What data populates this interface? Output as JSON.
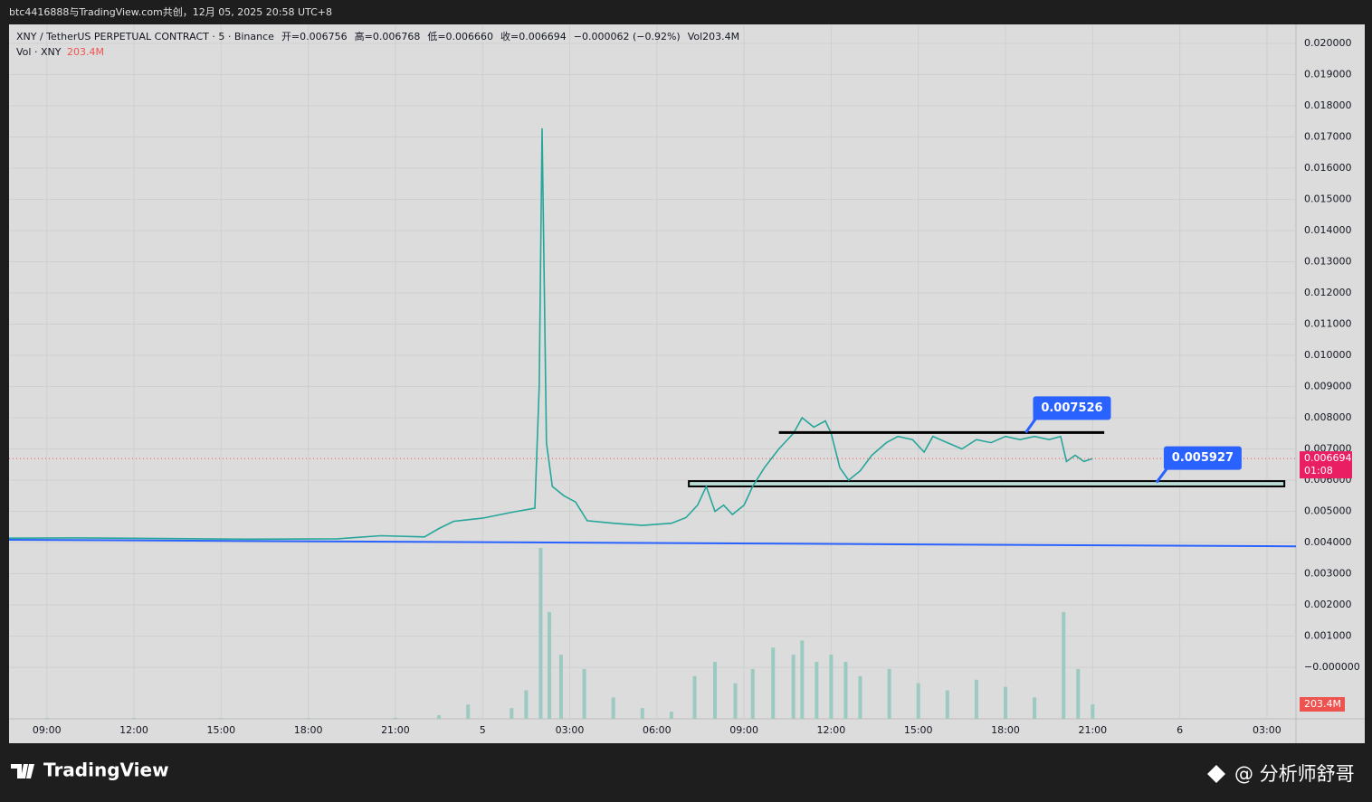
{
  "chart_data": {
    "type": "line",
    "title": "btc4416888与TradingView.com共创，12月 05, 2025 20:58 UTC+8",
    "legend": {
      "symbol": "XNY / TetherUS PERPETUAL CONTRACT · 5 · Binance",
      "open": "开=0.006756",
      "high": "高=0.006768",
      "low": "低=0.006660",
      "close": "收=0.006694",
      "change": "−0.000062 (−0.92%)",
      "vol_label": "Vol",
      "vol_value": "203.4M"
    },
    "x": [
      -1.3,
      1,
      4,
      7,
      10,
      11.5,
      13,
      13.5,
      14,
      15,
      16,
      16.8,
      16.95,
      17.05,
      17.2,
      17.4,
      17.8,
      18.2,
      18.6,
      19.5,
      20.5,
      21.5,
      22.0,
      22.4,
      22.7,
      23.0,
      23.3,
      23.6,
      24.0,
      24.3,
      24.7,
      25.2,
      25.7,
      26.0,
      26.4,
      26.8,
      27.0,
      27.3,
      27.6,
      28.0,
      28.4,
      28.9,
      29.3,
      29.8,
      30.2,
      30.5,
      31.0,
      31.5,
      32.0,
      32.5,
      33.0,
      33.5,
      34.0,
      34.5,
      34.9,
      35.1,
      35.4,
      35.7,
      36.0
    ],
    "series": [
      {
        "name": "XNY / TetherUS PERPETUAL CONTRACT · 5 · Binance",
        "color": "#26a69a",
        "values": [
          0.00414,
          0.00415,
          0.00413,
          0.00411,
          0.00412,
          0.00422,
          0.00418,
          0.00445,
          0.00468,
          0.00478,
          0.00497,
          0.0051,
          0.009,
          0.01728,
          0.0072,
          0.0058,
          0.0055,
          0.0053,
          0.0047,
          0.00462,
          0.00455,
          0.00462,
          0.0048,
          0.0052,
          0.0058,
          0.005,
          0.0052,
          0.0049,
          0.0052,
          0.0058,
          0.0064,
          0.007,
          0.0075,
          0.008,
          0.0077,
          0.0079,
          0.0075,
          0.0064,
          0.006,
          0.0063,
          0.0068,
          0.0072,
          0.0074,
          0.0073,
          0.0069,
          0.0074,
          0.0072,
          0.007,
          0.0073,
          0.0072,
          0.0074,
          0.0073,
          0.0074,
          0.0073,
          0.0074,
          0.0066,
          0.0068,
          0.0066,
          0.006694
        ]
      }
    ],
    "volume": {
      "name": "Vol · XNY",
      "color": "#9cc9c1",
      "x": [
        0,
        3,
        6,
        9,
        12,
        13.5,
        14.5,
        16,
        16.5,
        17,
        17.3,
        17.7,
        18.5,
        19.5,
        20.5,
        21.5,
        22.3,
        23,
        23.7,
        24.3,
        25,
        25.7,
        26,
        26.5,
        27,
        27.5,
        28,
        29,
        30,
        31,
        32,
        33,
        34,
        35,
        35.5,
        36
      ],
      "values": [
        10,
        10,
        10,
        10,
        15,
        50,
        200,
        150,
        400,
        2400,
        1500,
        900,
        700,
        300,
        150,
        100,
        600,
        800,
        500,
        700,
        1000,
        900,
        1100,
        800,
        900,
        800,
        600,
        700,
        500,
        400,
        550,
        450,
        300,
        1500,
        700,
        203.4
      ],
      "ylim": [
        0,
        2540
      ],
      "last_label": "203.4M"
    },
    "last_price": 0.006694,
    "countdown": "01:08",
    "trendline": {
      "x": [
        -1.3,
        43
      ],
      "values": [
        0.00409,
        0.00388
      ],
      "color": "#2962ff"
    },
    "levels": [
      {
        "value": 0.007526,
        "x": [
          25.2,
          36.4
        ],
        "callout_x": 33.7,
        "color": "#000000"
      }
    ],
    "zone": {
      "value": 0.005927,
      "band": [
        0.0058,
        0.00597
      ],
      "x": [
        22.1,
        42.6
      ],
      "callout_x": 38.2
    },
    "xlim": [
      -1.3,
      43
    ],
    "ylim": [
      -0.00165,
      0.02058
    ],
    "xticks": [
      {
        "value": 0,
        "label": "09:00"
      },
      {
        "value": 3,
        "label": "12:00"
      },
      {
        "value": 6,
        "label": "15:00"
      },
      {
        "value": 9,
        "label": "18:00"
      },
      {
        "value": 12,
        "label": "21:00"
      },
      {
        "value": 15,
        "label": "5"
      },
      {
        "value": 18,
        "label": "03:00"
      },
      {
        "value": 21,
        "label": "06:00"
      },
      {
        "value": 24,
        "label": "09:00"
      },
      {
        "value": 27,
        "label": "12:00"
      },
      {
        "value": 30,
        "label": "15:00"
      },
      {
        "value": 33,
        "label": "18:00"
      },
      {
        "value": 36,
        "label": "21:00"
      },
      {
        "value": 39,
        "label": "6"
      },
      {
        "value": 42,
        "label": "03:00"
      }
    ],
    "yticks": [
      {
        "value": 0.02,
        "label": "0.020000"
      },
      {
        "value": 0.019,
        "label": "0.019000"
      },
      {
        "value": 0.018,
        "label": "0.018000"
      },
      {
        "value": 0.017,
        "label": "0.017000"
      },
      {
        "value": 0.016,
        "label": "0.016000"
      },
      {
        "value": 0.015,
        "label": "0.015000"
      },
      {
        "value": 0.014,
        "label": "0.014000"
      },
      {
        "value": 0.013,
        "label": "0.013000"
      },
      {
        "value": 0.012,
        "label": "0.012000"
      },
      {
        "value": 0.011,
        "label": "0.011000"
      },
      {
        "value": 0.01,
        "label": "0.010000"
      },
      {
        "value": 0.009,
        "label": "0.009000"
      },
      {
        "value": 0.008,
        "label": "0.008000"
      },
      {
        "value": 0.007,
        "label": "0.007000"
      },
      {
        "value": 0.006,
        "label": "0.006000"
      },
      {
        "value": 0.005,
        "label": "0.005000"
      },
      {
        "value": 0.004,
        "label": "0.004000"
      },
      {
        "value": 0.003,
        "label": "0.003000"
      },
      {
        "value": 0.002,
        "label": "0.002000"
      },
      {
        "value": 0.001,
        "label": "0.001000"
      },
      {
        "value": 0,
        "label": "−0.000000"
      }
    ],
    "grid": true,
    "footer_brand": "TradingView",
    "footer_author": "@ 分析师舒哥"
  }
}
